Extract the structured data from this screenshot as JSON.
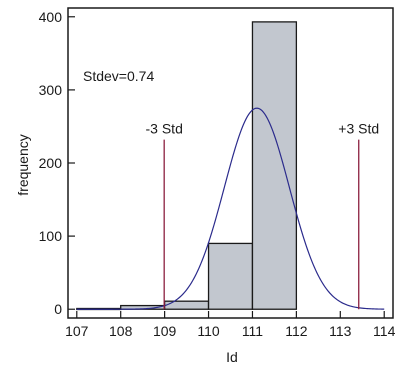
{
  "chart_data": {
    "type": "bar",
    "xlabel": "Id",
    "ylabel": "frequency",
    "xlim": [
      106.8,
      114.2
    ],
    "ylim": [
      -12,
      412
    ],
    "x_ticks": [
      "107",
      "108",
      "109",
      "110",
      "111",
      "112",
      "113",
      "114"
    ],
    "y_ticks": [
      "0",
      "100",
      "200",
      "300",
      "400"
    ],
    "grid": false,
    "bins": [
      {
        "start": 107,
        "end": 108,
        "value": 1
      },
      {
        "start": 108,
        "end": 109,
        "value": 5
      },
      {
        "start": 109,
        "end": 110,
        "value": 11
      },
      {
        "start": 110,
        "end": 111,
        "value": 90
      },
      {
        "start": 111,
        "end": 112,
        "value": 393
      }
    ],
    "normal_curve": {
      "mean": 111.1,
      "stdev": 0.74,
      "peak": 275,
      "color": "#2b2b8c"
    },
    "std_lines": [
      {
        "label": "-3 Std",
        "x": 108.99,
        "top": 232
      },
      {
        "label": "+3 Std",
        "x": 113.42,
        "top": 232
      }
    ],
    "annotation": "Stdev=0.74",
    "colors": {
      "bar_fill": "#c2c7cf",
      "bar_stroke": "#1a1a1a",
      "std_line": "#8c1f3f",
      "axis": "#1a1a1a"
    }
  }
}
